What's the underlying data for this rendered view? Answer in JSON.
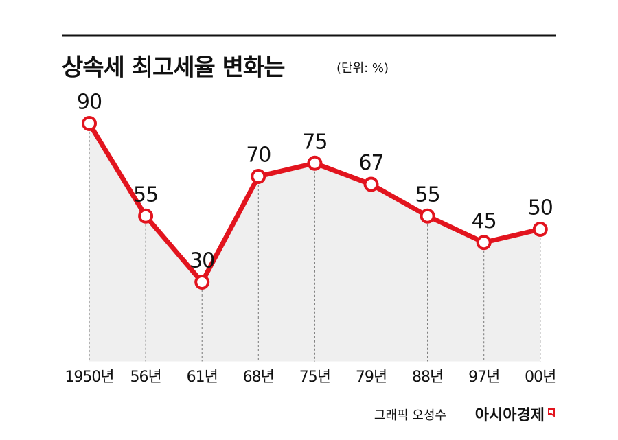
{
  "chart_data": {
    "type": "line",
    "title": "상속세 최고세율 변화는",
    "unit": "(단위: %)",
    "categories": [
      "1950년",
      "56년",
      "61년",
      "68년",
      "75년",
      "79년",
      "88년",
      "97년",
      "00년"
    ],
    "values": [
      90,
      55,
      30,
      70,
      75,
      67,
      55,
      45,
      50
    ],
    "color": "#e2141e",
    "ylim": [
      0,
      90
    ],
    "source": "그래픽 오성수",
    "brand": "아시아경제"
  }
}
